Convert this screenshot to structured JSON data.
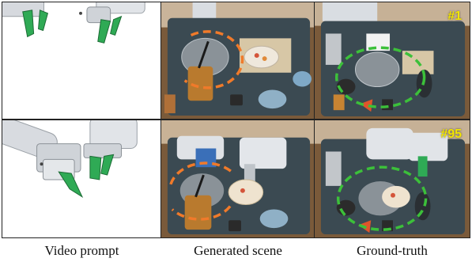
{
  "columns": [
    {
      "caption": "Video prompt"
    },
    {
      "caption": "Generated scene"
    },
    {
      "caption": "Ground-truth"
    }
  ],
  "rows": [
    {
      "frame_label": "#1"
    },
    {
      "frame_label": "#95"
    }
  ],
  "colors": {
    "prediction_ring": "#f07a2a",
    "ground_truth_ring": "#3cc03a",
    "gripper_finger": "#2faa55",
    "tray": "#3b4a52",
    "table_wood": "#8a6540"
  }
}
